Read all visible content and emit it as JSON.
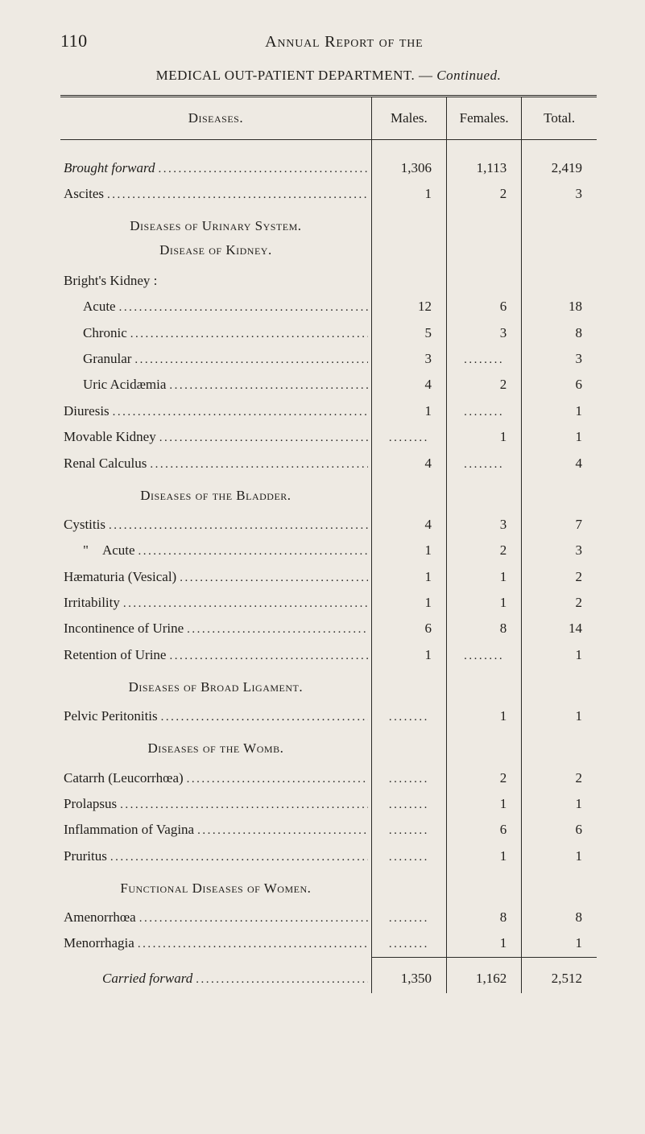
{
  "page_number": "110",
  "running_title": "Annual Report of the",
  "subtitle_main": "MEDICAL OUT-PATIENT DEPARTMENT. — ",
  "subtitle_cont": "Continued.",
  "columns": {
    "diseases": "Diseases.",
    "males": "Males.",
    "females": "Females.",
    "total": "Total."
  },
  "rows": [
    {
      "type": "data",
      "indent": 0,
      "label_pre": "",
      "label_ital": "Brought forward",
      "label_post": "",
      "leader": true,
      "males": "1,306",
      "females": "1,113",
      "total": "2,419"
    },
    {
      "type": "data",
      "indent": 0,
      "label": "Ascites",
      "leader": true,
      "males": "1",
      "females": "2",
      "total": "3"
    },
    {
      "type": "section",
      "label": "Diseases of Urinary System."
    },
    {
      "type": "section_sub",
      "label": "Disease of Kidney."
    },
    {
      "type": "plain",
      "indent": 0,
      "label": "Bright's Kidney :"
    },
    {
      "type": "data",
      "indent": 1,
      "label": "Acute",
      "leader": true,
      "males": "12",
      "females": "6",
      "total": "18"
    },
    {
      "type": "data",
      "indent": 1,
      "label": "Chronic",
      "leader": true,
      "males": "5",
      "females": "3",
      "total": "8"
    },
    {
      "type": "data",
      "indent": 1,
      "label": "Granular",
      "leader": true,
      "males": "3",
      "females": "DOTS",
      "total": "3"
    },
    {
      "type": "data",
      "indent": 1,
      "label": "Uric Acidæmia",
      "leader": true,
      "males": "4",
      "females": "2",
      "total": "6"
    },
    {
      "type": "data",
      "indent": 0,
      "label": "Diuresis",
      "leader": true,
      "males": "1",
      "females": "DOTS",
      "total": "1"
    },
    {
      "type": "data",
      "indent": 0,
      "label": "Movable Kidney",
      "leader": true,
      "males": "DOTS",
      "females": "1",
      "total": "1"
    },
    {
      "type": "data",
      "indent": 0,
      "label": "Renal Calculus",
      "leader": true,
      "males": "4",
      "females": "DOTS",
      "total": "4"
    },
    {
      "type": "section",
      "label": "Diseases of the Bladder."
    },
    {
      "type": "data",
      "indent": 0,
      "label": "Cystitis",
      "leader": true,
      "males": "4",
      "females": "3",
      "total": "7"
    },
    {
      "type": "data",
      "indent": 1,
      "label": "\" Acute",
      "leader": true,
      "males": "1",
      "females": "2",
      "total": "3"
    },
    {
      "type": "data",
      "indent": 0,
      "label": "Hæmaturia (Vesical)",
      "leader": true,
      "males": "1",
      "females": "1",
      "total": "2"
    },
    {
      "type": "data",
      "indent": 0,
      "label": "Irritability",
      "leader": true,
      "males": "1",
      "females": "1",
      "total": "2"
    },
    {
      "type": "data",
      "indent": 0,
      "label": "Incontinence of Urine",
      "leader": true,
      "males": "6",
      "females": "8",
      "total": "14"
    },
    {
      "type": "data",
      "indent": 0,
      "label": "Retention of Urine",
      "leader": true,
      "males": "1",
      "females": "DOTS",
      "total": "1"
    },
    {
      "type": "section",
      "label": "Diseases of Broad Ligament."
    },
    {
      "type": "data",
      "indent": 0,
      "label": "Pelvic Peritonitis",
      "leader": true,
      "males": "DOTS",
      "females": "1",
      "total": "1"
    },
    {
      "type": "section",
      "label": "Diseases of the Womb."
    },
    {
      "type": "data",
      "indent": 0,
      "label": "Catarrh (Leucorrhœa)",
      "leader": true,
      "males": "DOTS",
      "females": "2",
      "total": "2"
    },
    {
      "type": "data",
      "indent": 0,
      "label": "Prolapsus",
      "leader": true,
      "males": "DOTS",
      "females": "1",
      "total": "1"
    },
    {
      "type": "data",
      "indent": 0,
      "label": "Inflammation of Vagina",
      "leader": true,
      "males": "DOTS",
      "females": "6",
      "total": "6"
    },
    {
      "type": "data",
      "indent": 0,
      "label": "Pruritus",
      "leader": true,
      "males": "DOTS",
      "females": "1",
      "total": "1"
    },
    {
      "type": "section",
      "label": "Functional Diseases of Women."
    },
    {
      "type": "data",
      "indent": 0,
      "label": "Amenorrhœa",
      "leader": true,
      "males": "DOTS",
      "females": "8",
      "total": "8"
    },
    {
      "type": "data",
      "indent": 0,
      "label": "Menorrhagia",
      "leader": true,
      "males": "DOTS",
      "females": "1",
      "total": "1"
    },
    {
      "type": "footer_rule"
    },
    {
      "type": "footer",
      "indent": 2,
      "label_ital": "Carried forward",
      "leader": true,
      "males": "1,350",
      "females": "1,162",
      "total": "2,512"
    }
  ]
}
